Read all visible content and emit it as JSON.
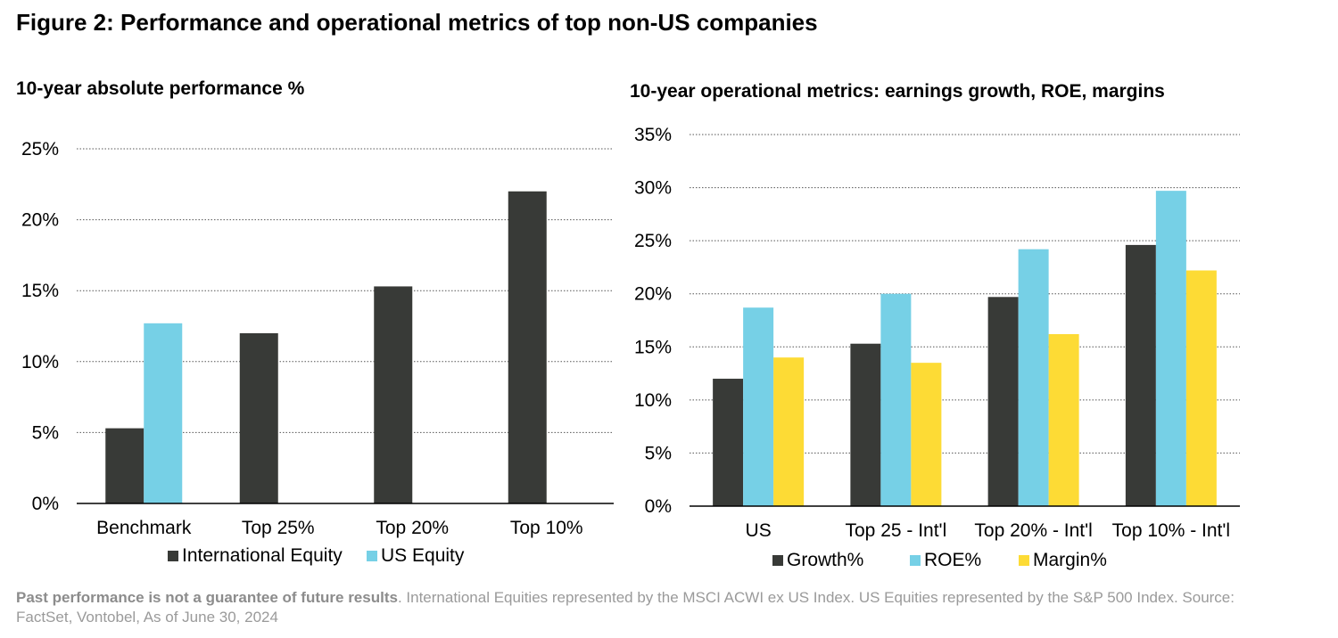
{
  "figure": {
    "title": "Figure 2: Performance and operational metrics of top non-US companies"
  },
  "colors": {
    "international": "#383a37",
    "us": "#76d0e6",
    "growth": "#383a37",
    "roe": "#76d0e6",
    "margin": "#fddb35",
    "grid": "#555555"
  },
  "chart_data": [
    {
      "type": "bar",
      "title": "10-year absolute performance %",
      "categories": [
        "Benchmark",
        "Top 25%",
        "Top 20%",
        "Top 10%"
      ],
      "series": [
        {
          "name": "International Equity",
          "values": [
            5.3,
            12.0,
            15.3,
            22.0
          ]
        },
        {
          "name": "US Equity",
          "values": [
            12.7,
            null,
            null,
            null
          ]
        }
      ],
      "ylim": [
        0,
        25
      ],
      "yticks": [
        "0%",
        "5%",
        "10%",
        "15%",
        "20%",
        "25%"
      ],
      "grid": true,
      "legend": "bottom"
    },
    {
      "type": "bar",
      "title": "10-year operational metrics: earnings growth, ROE, margins",
      "categories": [
        "US",
        "Top 25 - Int'l",
        "Top 20% - Int'l",
        "Top 10% - Int'l"
      ],
      "series": [
        {
          "name": "Growth%",
          "values": [
            12.0,
            15.3,
            19.7,
            24.6
          ]
        },
        {
          "name": "ROE%",
          "values": [
            18.7,
            20.0,
            24.2,
            29.7
          ]
        },
        {
          "name": "Margin%",
          "values": [
            14.0,
            13.5,
            16.2,
            22.2
          ]
        }
      ],
      "ylim": [
        0,
        35
      ],
      "yticks": [
        "0%",
        "5%",
        "10%",
        "15%",
        "20%",
        "25%",
        "30%",
        "35%"
      ],
      "grid": true,
      "legend": "bottom"
    }
  ],
  "footnote": {
    "bold": "Past performance is not a guarantee of future results",
    "text": ". International Equities represented by the MSCI ACWI ex US Index. US Equities represented by the S&P 500 Index. Source: FactSet, Vontobel, As of June 30, 2024"
  }
}
